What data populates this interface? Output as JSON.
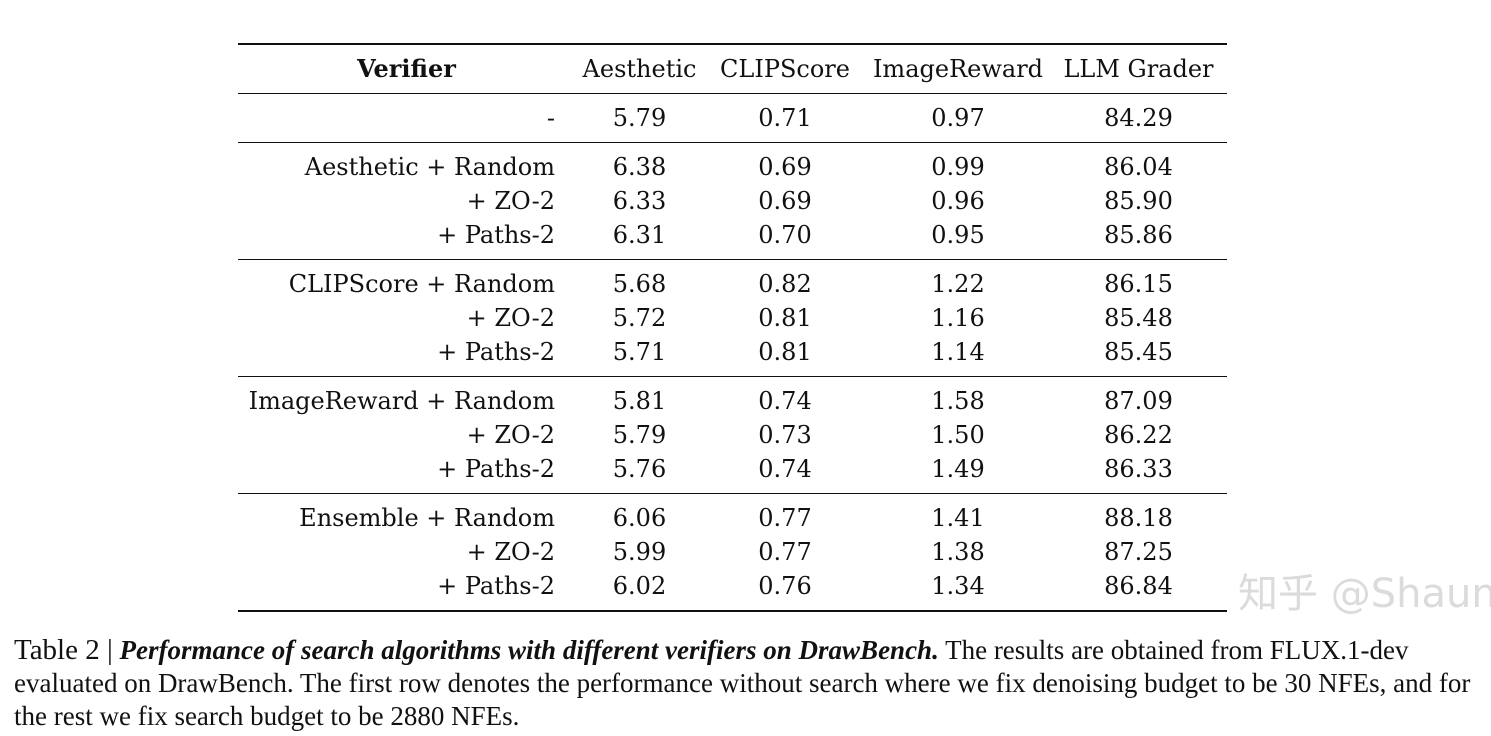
{
  "table": {
    "headers": [
      "Verifier",
      "Aesthetic",
      "CLIPScore",
      "ImageReward",
      "LLM Grader"
    ],
    "groups": [
      {
        "rows": [
          {
            "cells": [
              "-",
              "5.79",
              "0.71",
              "0.97",
              "84.29"
            ],
            "bold": []
          }
        ]
      },
      {
        "rows": [
          {
            "cells": [
              "Aesthetic + Random",
              "6.38",
              "0.69",
              "0.99",
              "86.04"
            ],
            "bold": [
              1
            ]
          },
          {
            "cells": [
              "+ ZO-2",
              "6.33",
              "0.69",
              "0.96",
              "85.90"
            ],
            "bold": []
          },
          {
            "cells": [
              "+ Paths-2",
              "6.31",
              "0.70",
              "0.95",
              "85.86"
            ],
            "bold": []
          }
        ]
      },
      {
        "rows": [
          {
            "cells": [
              "CLIPScore + Random",
              "5.68",
              "0.82",
              "1.22",
              "86.15"
            ],
            "bold": [
              2
            ]
          },
          {
            "cells": [
              "+ ZO-2",
              "5.72",
              "0.81",
              "1.16",
              "85.48"
            ],
            "bold": []
          },
          {
            "cells": [
              "+ Paths-2",
              "5.71",
              "0.81",
              "1.14",
              "85.45"
            ],
            "bold": []
          }
        ]
      },
      {
        "rows": [
          {
            "cells": [
              "ImageReward + Random",
              "5.81",
              "0.74",
              "1.58",
              "87.09"
            ],
            "bold": [
              3
            ]
          },
          {
            "cells": [
              "+ ZO-2",
              "5.79",
              "0.73",
              "1.50",
              "86.22"
            ],
            "bold": []
          },
          {
            "cells": [
              "+ Paths-2",
              "5.76",
              "0.74",
              "1.49",
              "86.33"
            ],
            "bold": []
          }
        ]
      },
      {
        "rows": [
          {
            "cells": [
              "Ensemble + Random",
              "6.06",
              "0.77",
              "1.41",
              "88.18"
            ],
            "bold": [
              4
            ]
          },
          {
            "cells": [
              "+ ZO-2",
              "5.99",
              "0.77",
              "1.38",
              "87.25"
            ],
            "bold": []
          },
          {
            "cells": [
              "+ Paths-2",
              "6.02",
              "0.76",
              "1.34",
              "86.84"
            ],
            "bold": []
          }
        ]
      }
    ]
  },
  "caption": {
    "label": "Table 2 |",
    "title": "Performance of search algorithms with different verifiers on DrawBench.",
    "body": "The results are obtained from FLUX.1-dev evaluated on DrawBench. The first row denotes the performance without search where we fix denoising budget to be 30 NFEs, and for the rest we fix search budget to be 2880 NFEs."
  },
  "watermark": "知乎 @Shaun"
}
